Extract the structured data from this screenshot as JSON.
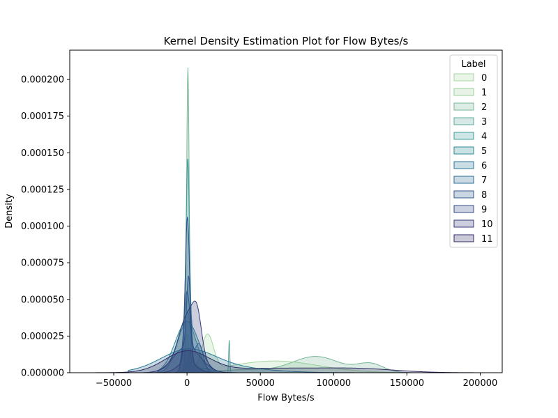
{
  "chart_data": {
    "type": "area",
    "title": "Kernel Density Estimation Plot for Flow Bytes/s",
    "xlabel": "Flow Bytes/s",
    "ylabel": "Density",
    "xlim": [
      -80000,
      215000
    ],
    "ylim": [
      0,
      0.00022
    ],
    "x_ticks": [
      -50000,
      0,
      50000,
      100000,
      150000,
      200000
    ],
    "x_tick_labels": [
      "−50000",
      "0",
      "50000",
      "100000",
      "150000",
      "200000"
    ],
    "y_ticks": [
      0,
      2.5e-05,
      5e-05,
      7.5e-05,
      0.0001,
      0.000125,
      0.00015,
      0.000175,
      0.0002
    ],
    "y_tick_labels": [
      "0.000000",
      "0.000025",
      "0.000050",
      "0.000075",
      "0.000100",
      "0.000125",
      "0.000150",
      "0.000175",
      "0.000200"
    ],
    "grid": false,
    "legend_title": "Label",
    "legend_position": "upper right",
    "series": [
      {
        "name": "0",
        "color": "#a5d6a0",
        "x_range": [
          -5000,
          155000
        ],
        "components": [
          [
            2000,
            1500,
            1.2e-05
          ],
          [
            14000,
            4000,
            2.4e-05
          ],
          [
            60000,
            30000,
            8e-06
          ]
        ]
      },
      {
        "name": "1",
        "color": "#9ad199",
        "x_range": [
          -8000,
          15000
        ],
        "components": [
          [
            0,
            1200,
            2.6e-05
          ],
          [
            6000,
            2500,
            6e-06
          ]
        ]
      },
      {
        "name": "2",
        "color": "#77b796",
        "x_range": [
          -8000,
          152000
        ],
        "components": [
          [
            600,
            900,
            0.000208
          ],
          [
            88000,
            16000,
            1.1e-05
          ],
          [
            125000,
            9000,
            6e-06
          ],
          [
            40000,
            20000,
            2e-06
          ]
        ]
      },
      {
        "name": "3",
        "color": "#5fa99b",
        "x_range": [
          -5000,
          35000
        ],
        "components": [
          [
            28800,
            400,
            2.2e-05
          ],
          [
            0,
            2500,
            4.2e-05
          ],
          [
            12000,
            6000,
            3e-06
          ]
        ]
      },
      {
        "name": "4",
        "color": "#3e9c9c",
        "x_range": [
          -20000,
          40000
        ],
        "components": [
          [
            500,
            1100,
            0.000112
          ],
          [
            0,
            6500,
            3.4e-05
          ]
        ]
      },
      {
        "name": "5",
        "color": "#2f8a99",
        "x_range": [
          -20000,
          40000
        ],
        "components": [
          [
            0,
            8000,
            3.5e-05
          ]
        ]
      },
      {
        "name": "6",
        "color": "#2a7896",
        "x_range": [
          -40000,
          180000
        ],
        "components": [
          [
            0,
            18000,
            1.3e-05
          ],
          [
            20000,
            30000,
            4e-06
          ]
        ]
      },
      {
        "name": "7",
        "color": "#2f6c94",
        "x_range": [
          -20000,
          30000
        ],
        "components": [
          [
            0,
            2200,
            5.5e-05
          ],
          [
            8000,
            3000,
            2e-05
          ]
        ]
      },
      {
        "name": "8",
        "color": "#2f5b8f",
        "x_range": [
          -30000,
          45000
        ],
        "components": [
          [
            1000,
            1300,
            4.8e-05
          ],
          [
            0,
            9000,
            1.8e-05
          ]
        ]
      },
      {
        "name": "9",
        "color": "#354a86",
        "x_range": [
          -20000,
          30000
        ],
        "components": [
          [
            300,
            1500,
            9.8e-05
          ],
          [
            0,
            6000,
            8e-06
          ]
        ]
      },
      {
        "name": "10",
        "color": "#353b7a",
        "x_range": [
          -25000,
          35000
        ],
        "components": [
          [
            1000,
            6000,
            3e-05
          ],
          [
            7000,
            3000,
            2e-05
          ],
          [
            0,
            10000,
            1e-05
          ]
        ]
      },
      {
        "name": "11",
        "color": "#2e2a63",
        "x_range": [
          -70000,
          200000
        ],
        "components": [
          [
            0,
            15000,
            1.4e-05
          ],
          [
            60000,
            40000,
            3e-06
          ],
          [
            120000,
            25000,
            2e-06
          ]
        ]
      }
    ]
  }
}
